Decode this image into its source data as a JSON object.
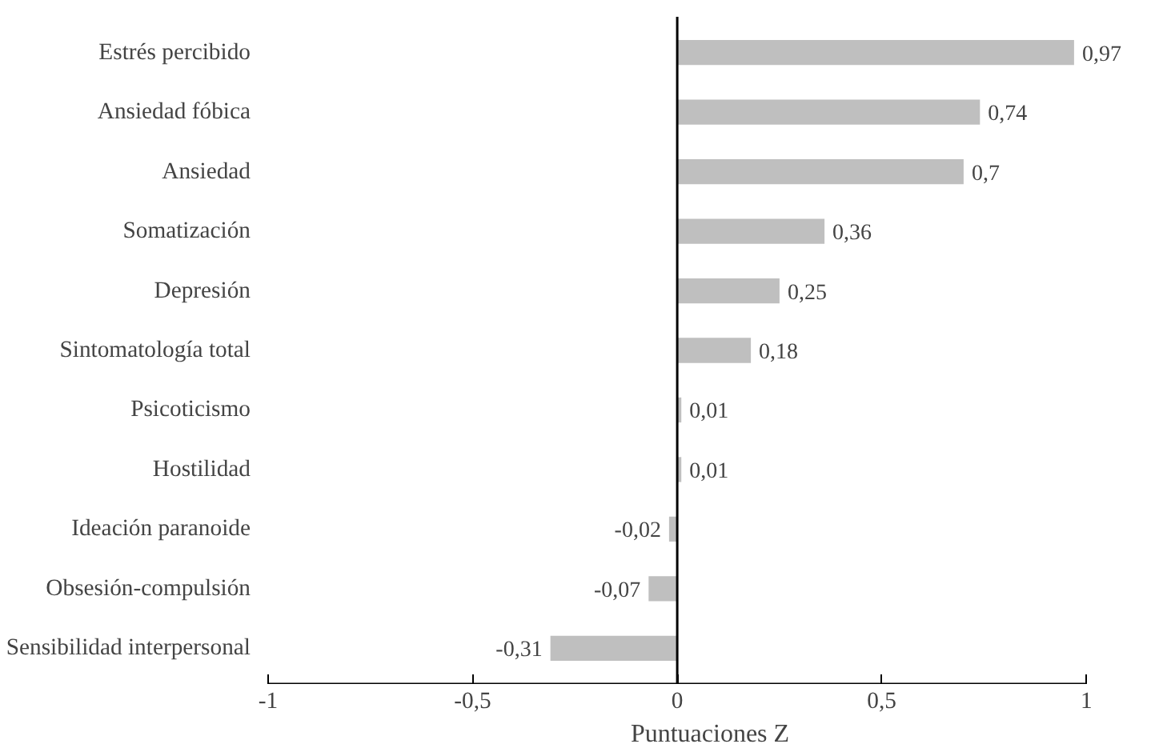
{
  "chart_data": {
    "type": "bar",
    "orientation": "horizontal",
    "xlabel": "Puntuaciones Z",
    "categories": [
      "Estrés percibido",
      "Ansiedad fóbica",
      "Ansiedad",
      "Somatización",
      "Depresión",
      "Sintomatología total",
      "Psicoticismo",
      "Hostilidad",
      "Ideación paranoide",
      "Obsesión-compulsión",
      "Sensibilidad interpersonal"
    ],
    "values": [
      0.97,
      0.74,
      0.7,
      0.36,
      0.25,
      0.18,
      0.01,
      0.01,
      -0.02,
      -0.07,
      -0.31
    ],
    "value_labels": [
      "0,97",
      "0,74",
      "0,7",
      "0,36",
      "0,25",
      "0,18",
      "0,01",
      "0,01",
      "-0,02",
      "-0,07",
      "-0,31"
    ],
    "color": "#bfbfbf",
    "xlim": [
      -1,
      1
    ],
    "xticks": [
      {
        "value": -1,
        "label": "-1"
      },
      {
        "value": -0.5,
        "label": "-0,5"
      },
      {
        "value": 0,
        "label": "0"
      },
      {
        "value": 0.5,
        "label": "0,5"
      },
      {
        "value": 1,
        "label": "1"
      }
    ],
    "ref_lines": [
      {
        "axis": "x",
        "value": 0,
        "color": "#000000"
      }
    ],
    "grid": false
  }
}
